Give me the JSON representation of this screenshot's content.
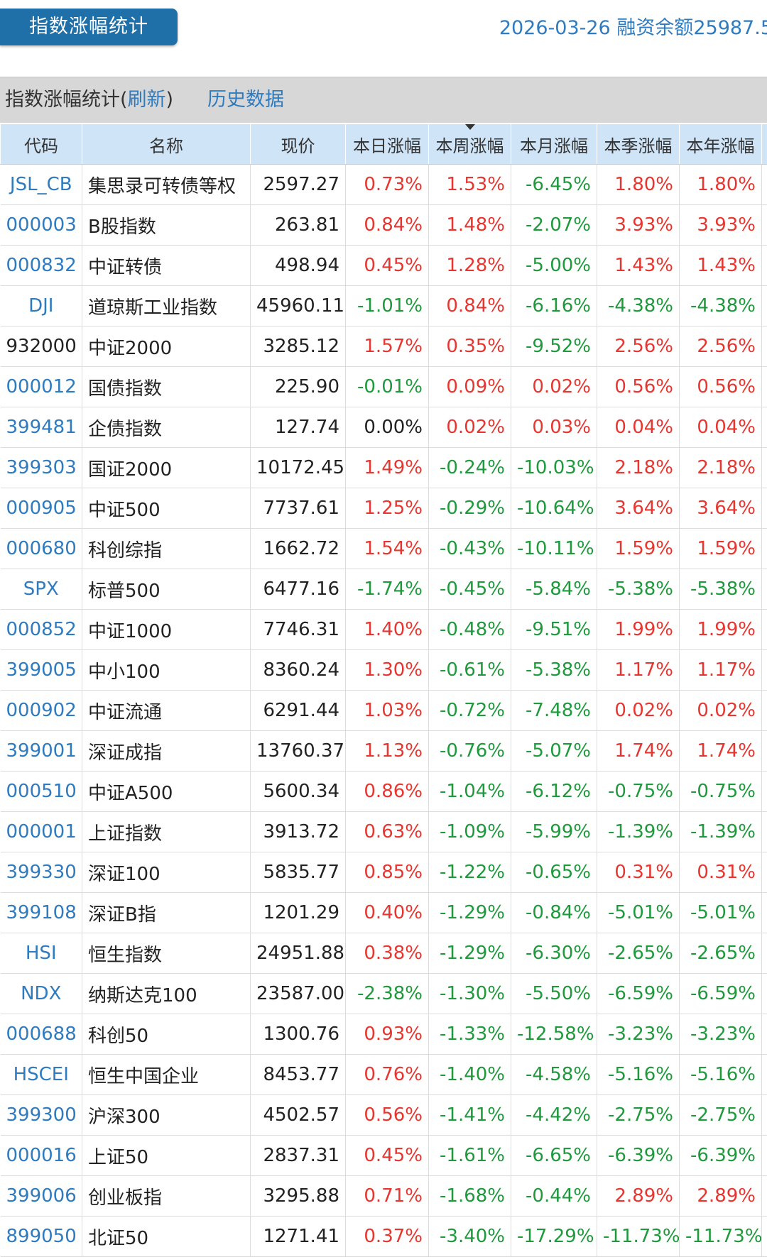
{
  "header": {
    "tab_label": "指数涨幅统计",
    "date": "2026-03-26",
    "margin_balance_label": "融资余额25987.5"
  },
  "section": {
    "title_prefix": "指数涨幅统计(",
    "refresh_link": "刷新",
    "title_suffix": ")",
    "history_link": "历史数据"
  },
  "columns": [
    "代码",
    "名称",
    "现价",
    "本日涨幅",
    "本周涨幅",
    "本月涨幅",
    "本季涨幅",
    "本年涨幅"
  ],
  "sorted_column": "本周涨幅",
  "colors": {
    "up": "#e8352f",
    "down": "#1e9a3c",
    "link": "#2f7bbf",
    "header_bg": "#cfe4f6",
    "tab_bg": "#1f6fa8"
  },
  "rows": [
    {
      "code": "JSL_CB",
      "name": "集思录可转债等权",
      "price": "2597.27",
      "day": "0.73%",
      "week": "1.53%",
      "month": "-6.45%",
      "quarter": "1.80%",
      "year": "1.80%"
    },
    {
      "code": "000003",
      "name": "B股指数",
      "price": "263.81",
      "day": "0.84%",
      "week": "1.48%",
      "month": "-2.07%",
      "quarter": "3.93%",
      "year": "3.93%"
    },
    {
      "code": "000832",
      "name": "中证转债",
      "price": "498.94",
      "day": "0.45%",
      "week": "1.28%",
      "month": "-5.00%",
      "quarter": "1.43%",
      "year": "1.43%"
    },
    {
      "code": "DJI",
      "name": "道琼斯工业指数",
      "price": "45960.11",
      "day": "-1.01%",
      "week": "0.84%",
      "month": "-6.16%",
      "quarter": "-4.38%",
      "year": "-4.38%"
    },
    {
      "code": "932000",
      "name": "中证2000",
      "price": "3285.12",
      "day": "1.57%",
      "week": "0.35%",
      "month": "-9.52%",
      "quarter": "2.56%",
      "year": "2.56%",
      "code_black": true
    },
    {
      "code": "000012",
      "name": "国债指数",
      "price": "225.90",
      "day": "-0.01%",
      "week": "0.09%",
      "month": "0.02%",
      "quarter": "0.56%",
      "year": "0.56%"
    },
    {
      "code": "399481",
      "name": "企债指数",
      "price": "127.74",
      "day": "0.00%",
      "week": "0.02%",
      "month": "0.03%",
      "quarter": "0.04%",
      "year": "0.04%"
    },
    {
      "code": "399303",
      "name": "国证2000",
      "price": "10172.45",
      "day": "1.49%",
      "week": "-0.24%",
      "month": "-10.03%",
      "quarter": "2.18%",
      "year": "2.18%"
    },
    {
      "code": "000905",
      "name": "中证500",
      "price": "7737.61",
      "day": "1.25%",
      "week": "-0.29%",
      "month": "-10.64%",
      "quarter": "3.64%",
      "year": "3.64%"
    },
    {
      "code": "000680",
      "name": "科创综指",
      "price": "1662.72",
      "day": "1.54%",
      "week": "-0.43%",
      "month": "-10.11%",
      "quarter": "1.59%",
      "year": "1.59%"
    },
    {
      "code": "SPX",
      "name": "标普500",
      "price": "6477.16",
      "day": "-1.74%",
      "week": "-0.45%",
      "month": "-5.84%",
      "quarter": "-5.38%",
      "year": "-5.38%"
    },
    {
      "code": "000852",
      "name": "中证1000",
      "price": "7746.31",
      "day": "1.40%",
      "week": "-0.48%",
      "month": "-9.51%",
      "quarter": "1.99%",
      "year": "1.99%"
    },
    {
      "code": "399005",
      "name": "中小100",
      "price": "8360.24",
      "day": "1.30%",
      "week": "-0.61%",
      "month": "-5.38%",
      "quarter": "1.17%",
      "year": "1.17%"
    },
    {
      "code": "000902",
      "name": "中证流通",
      "price": "6291.44",
      "day": "1.03%",
      "week": "-0.72%",
      "month": "-7.48%",
      "quarter": "0.02%",
      "year": "0.02%"
    },
    {
      "code": "399001",
      "name": "深证成指",
      "price": "13760.37",
      "day": "1.13%",
      "week": "-0.76%",
      "month": "-5.07%",
      "quarter": "1.74%",
      "year": "1.74%"
    },
    {
      "code": "000510",
      "name": "中证A500",
      "price": "5600.34",
      "day": "0.86%",
      "week": "-1.04%",
      "month": "-6.12%",
      "quarter": "-0.75%",
      "year": "-0.75%"
    },
    {
      "code": "000001",
      "name": "上证指数",
      "price": "3913.72",
      "day": "0.63%",
      "week": "-1.09%",
      "month": "-5.99%",
      "quarter": "-1.39%",
      "year": "-1.39%"
    },
    {
      "code": "399330",
      "name": "深证100",
      "price": "5835.77",
      "day": "0.85%",
      "week": "-1.22%",
      "month": "-0.65%",
      "quarter": "0.31%",
      "year": "0.31%"
    },
    {
      "code": "399108",
      "name": "深证B指",
      "price": "1201.29",
      "day": "0.40%",
      "week": "-1.29%",
      "month": "-0.84%",
      "quarter": "-5.01%",
      "year": "-5.01%"
    },
    {
      "code": "HSI",
      "name": "恒生指数",
      "price": "24951.88",
      "day": "0.38%",
      "week": "-1.29%",
      "month": "-6.30%",
      "quarter": "-2.65%",
      "year": "-2.65%"
    },
    {
      "code": "NDX",
      "name": "纳斯达克100",
      "price": "23587.00",
      "day": "-2.38%",
      "week": "-1.30%",
      "month": "-5.50%",
      "quarter": "-6.59%",
      "year": "-6.59%"
    },
    {
      "code": "000688",
      "name": "科创50",
      "price": "1300.76",
      "day": "0.93%",
      "week": "-1.33%",
      "month": "-12.58%",
      "quarter": "-3.23%",
      "year": "-3.23%"
    },
    {
      "code": "HSCEI",
      "name": "恒生中国企业",
      "price": "8453.77",
      "day": "0.76%",
      "week": "-1.40%",
      "month": "-4.58%",
      "quarter": "-5.16%",
      "year": "-5.16%"
    },
    {
      "code": "399300",
      "name": "沪深300",
      "price": "4502.57",
      "day": "0.56%",
      "week": "-1.41%",
      "month": "-4.42%",
      "quarter": "-2.75%",
      "year": "-2.75%"
    },
    {
      "code": "000016",
      "name": "上证50",
      "price": "2837.31",
      "day": "0.45%",
      "week": "-1.61%",
      "month": "-6.65%",
      "quarter": "-6.39%",
      "year": "-6.39%"
    },
    {
      "code": "399006",
      "name": "创业板指",
      "price": "3295.88",
      "day": "0.71%",
      "week": "-1.68%",
      "month": "-0.44%",
      "quarter": "2.89%",
      "year": "2.89%"
    },
    {
      "code": "899050",
      "name": "北证50",
      "price": "1271.41",
      "day": "0.37%",
      "week": "-3.40%",
      "month": "-17.29%",
      "quarter": "-11.73%",
      "year": "-11.73%"
    }
  ]
}
